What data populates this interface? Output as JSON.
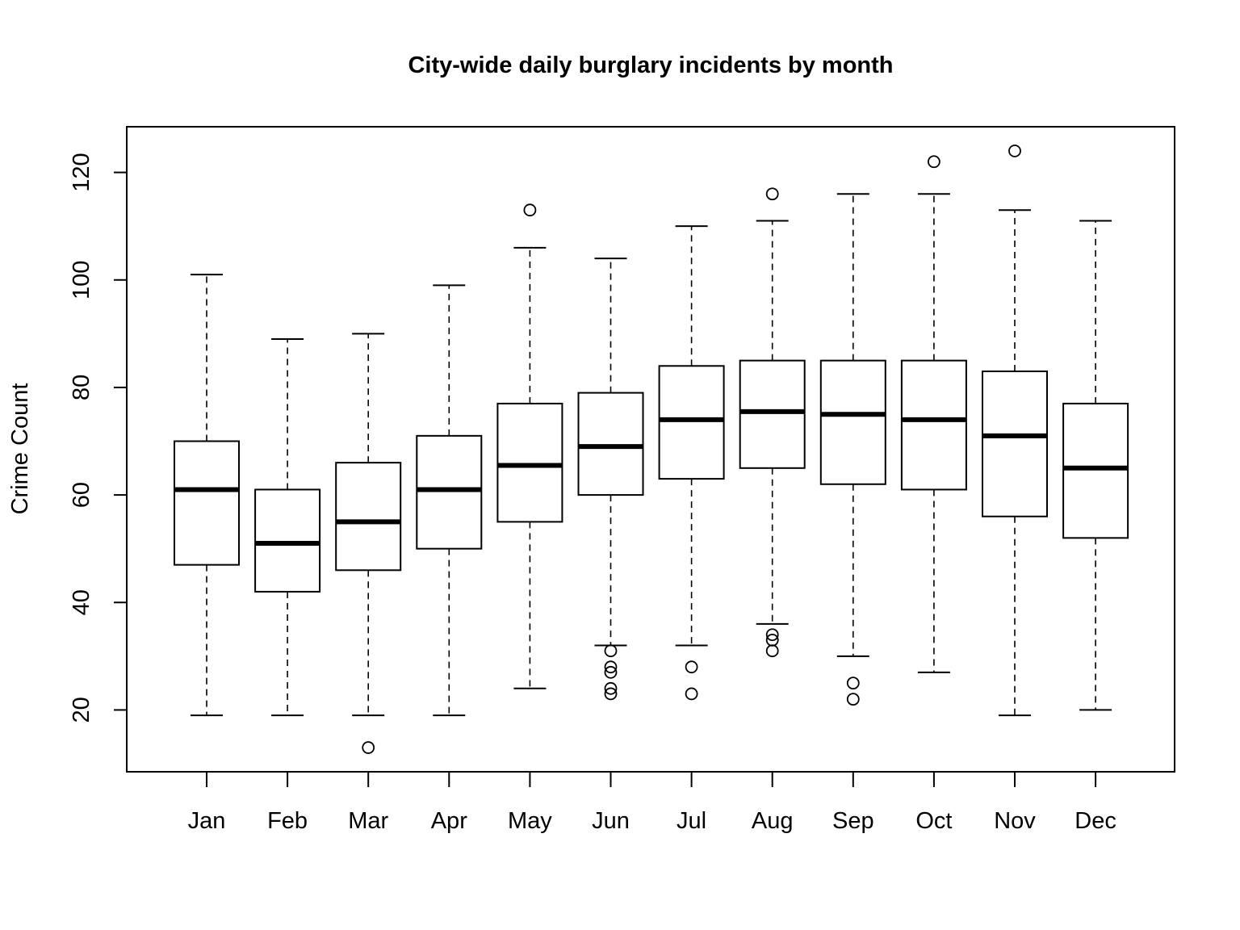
{
  "chart_data": {
    "type": "boxplot",
    "title": "City-wide daily burglary incidents by month",
    "xlabel": "",
    "ylabel": "Crime Count",
    "categories": [
      "Jan",
      "Feb",
      "Mar",
      "Apr",
      "May",
      "Jun",
      "Jul",
      "Aug",
      "Sep",
      "Oct",
      "Nov",
      "Dec"
    ],
    "yticks": [
      20,
      40,
      60,
      80,
      100,
      120
    ],
    "ylim": [
      8.5,
      128.5
    ],
    "grid": false,
    "boxes": [
      {
        "category": "Jan",
        "whisker_low": 19,
        "q1": 47,
        "median": 61,
        "q3": 70,
        "whisker_high": 101,
        "outliers": []
      },
      {
        "category": "Feb",
        "whisker_low": 19,
        "q1": 42,
        "median": 51,
        "q3": 61,
        "whisker_high": 89,
        "outliers": []
      },
      {
        "category": "Mar",
        "whisker_low": 19,
        "q1": 46,
        "median": 55,
        "q3": 66,
        "whisker_high": 90,
        "outliers": [
          13
        ]
      },
      {
        "category": "Apr",
        "whisker_low": 19,
        "q1": 50,
        "median": 61,
        "q3": 71,
        "whisker_high": 99,
        "outliers": []
      },
      {
        "category": "May",
        "whisker_low": 24,
        "q1": 55,
        "median": 65.5,
        "q3": 77,
        "whisker_high": 106,
        "outliers": [
          113
        ]
      },
      {
        "category": "Jun",
        "whisker_low": 32,
        "q1": 60,
        "median": 69,
        "q3": 79,
        "whisker_high": 104,
        "outliers": [
          31,
          28,
          27,
          24,
          23
        ]
      },
      {
        "category": "Jul",
        "whisker_low": 32,
        "q1": 63,
        "median": 74,
        "q3": 84,
        "whisker_high": 110,
        "outliers": [
          28,
          23
        ]
      },
      {
        "category": "Aug",
        "whisker_low": 36,
        "q1": 65,
        "median": 75.5,
        "q3": 85,
        "whisker_high": 111,
        "outliers": [
          116,
          34,
          33,
          31
        ]
      },
      {
        "category": "Sep",
        "whisker_low": 30,
        "q1": 62,
        "median": 75,
        "q3": 85,
        "whisker_high": 116,
        "outliers": [
          25,
          22
        ]
      },
      {
        "category": "Oct",
        "whisker_low": 27,
        "q1": 61,
        "median": 74,
        "q3": 85,
        "whisker_high": 116,
        "outliers": [
          122
        ]
      },
      {
        "category": "Nov",
        "whisker_low": 19,
        "q1": 56,
        "median": 71,
        "q3": 83,
        "whisker_high": 113,
        "outliers": [
          124
        ]
      },
      {
        "category": "Dec",
        "whisker_low": 20,
        "q1": 52,
        "median": 65,
        "q3": 77,
        "whisker_high": 111,
        "outliers": []
      }
    ]
  }
}
